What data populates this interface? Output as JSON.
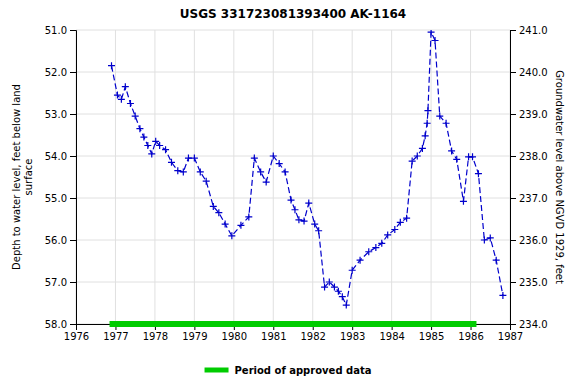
{
  "chart_data": {
    "type": "line",
    "title": "USGS 331723081393400 AK-1164",
    "y_label": "Depth to water level, feet below land\n surface",
    "y2_label": "Groundwater level above NGVD 1929, feet",
    "xlim": [
      1976,
      1987
    ],
    "xticks": [
      1976,
      1977,
      1978,
      1979,
      1980,
      1981,
      1982,
      1983,
      1984,
      1985,
      1986,
      1987
    ],
    "ylim": [
      58.0,
      51.0
    ],
    "yticks": [
      {
        "value": 51.0,
        "label": "51.0"
      },
      {
        "value": 52.0,
        "label": "52.0"
      },
      {
        "value": 53.0,
        "label": "53.0"
      },
      {
        "value": 54.0,
        "label": "54.0"
      },
      {
        "value": 55.0,
        "label": "55.0"
      },
      {
        "value": 56.0,
        "label": "56.0"
      },
      {
        "value": 57.0,
        "label": "57.0"
      },
      {
        "value": 58.0,
        "label": "58.0"
      }
    ],
    "y2lim": [
      234.0,
      241.0
    ],
    "y2ticks": [
      {
        "value": 234.0,
        "label": "234.0"
      },
      {
        "value": 235.0,
        "label": "235.0"
      },
      {
        "value": 236.0,
        "label": "236.0"
      },
      {
        "value": 237.0,
        "label": "237.0"
      },
      {
        "value": 238.0,
        "label": "238.0"
      },
      {
        "value": 239.0,
        "label": "239.0"
      },
      {
        "value": 240.0,
        "label": "240.0"
      },
      {
        "value": 241.0,
        "label": "241.0"
      }
    ],
    "grid": true,
    "legend": "bottom",
    "x": [
      1976.9,
      1977.05,
      1977.15,
      1977.25,
      1977.38,
      1977.5,
      1977.62,
      1977.72,
      1977.82,
      1977.92,
      1978.02,
      1978.12,
      1978.27,
      1978.42,
      1978.58,
      1978.72,
      1978.85,
      1979.0,
      1979.15,
      1979.3,
      1979.48,
      1979.62,
      1979.78,
      1979.95,
      1980.18,
      1980.38,
      1980.52,
      1980.68,
      1980.82,
      1981.0,
      1981.15,
      1981.3,
      1981.45,
      1981.55,
      1981.65,
      1981.78,
      1981.9,
      1982.05,
      1982.15,
      1982.3,
      1982.42,
      1982.55,
      1982.65,
      1982.75,
      1982.85,
      1983.0,
      1983.2,
      1983.42,
      1983.6,
      1983.75,
      1983.9,
      1984.08,
      1984.22,
      1984.38,
      1984.52,
      1984.65,
      1984.78,
      1984.85,
      1984.9,
      1984.92,
      1985.0,
      1985.1,
      1985.22,
      1985.38,
      1985.52,
      1985.65,
      1985.82,
      1985.95,
      1986.05,
      1986.2,
      1986.35,
      1986.5,
      1986.65,
      1986.82
    ],
    "series": [
      {
        "color": "#0000cc",
        "marker": "plus",
        "line_style": "dashed",
        "values": [
          51.85,
          52.55,
          52.65,
          52.35,
          52.75,
          53.05,
          53.35,
          53.55,
          53.75,
          53.95,
          53.65,
          53.75,
          53.85,
          54.15,
          54.35,
          54.38,
          54.05,
          54.05,
          54.38,
          54.6,
          55.2,
          55.35,
          55.62,
          55.9,
          55.65,
          55.45,
          54.05,
          54.38,
          54.62,
          54.0,
          54.18,
          54.38,
          55.05,
          55.28,
          55.52,
          55.55,
          55.12,
          55.62,
          55.78,
          57.12,
          57.0,
          57.12,
          57.22,
          57.35,
          57.55,
          56.72,
          56.48,
          56.28,
          56.18,
          56.08,
          55.88,
          55.75,
          55.58,
          55.48,
          54.12,
          54.0,
          53.82,
          53.52,
          53.22,
          52.92,
          51.05,
          51.25,
          53.05,
          53.22,
          53.88,
          54.08,
          55.08,
          54.02,
          54.02,
          54.42,
          56.0,
          55.95,
          56.48,
          57.32
        ]
      },
      {
        "name": "Period of approved data",
        "color": "#00cc00",
        "line_style": "solid",
        "x": [
          1976.85,
          1986.15
        ],
        "values": [
          58.0,
          58.0
        ]
      }
    ]
  }
}
